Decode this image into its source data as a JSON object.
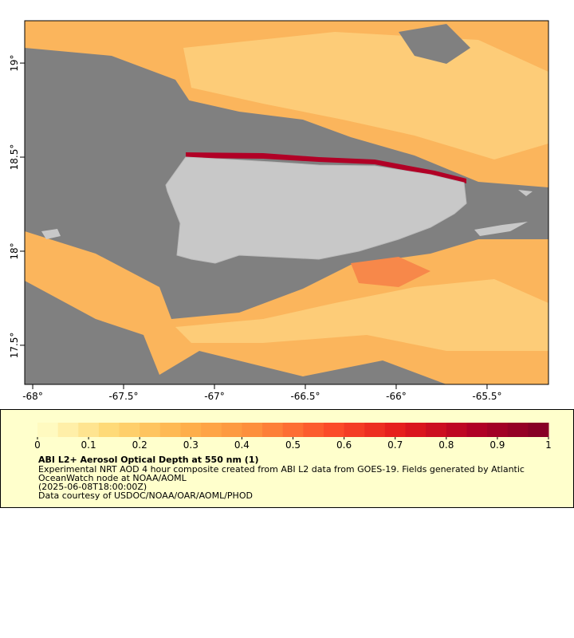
{
  "map": {
    "xlim": [
      -68.044,
      -65.162
    ],
    "ylim": [
      17.292,
      19.225
    ],
    "xticks": [
      {
        "value": -68,
        "label": "-68°"
      },
      {
        "value": -67.5,
        "label": "-67.5°"
      },
      {
        "value": -67,
        "label": "-67°"
      },
      {
        "value": -66.5,
        "label": "-66.5°"
      },
      {
        "value": -66,
        "label": "-66°"
      },
      {
        "value": -65.5,
        "label": "-65.5°"
      }
    ],
    "yticks": [
      {
        "value": 17.5,
        "label": "17.5°"
      },
      {
        "value": 18,
        "label": "18°"
      },
      {
        "value": 18.5,
        "label": "18.5°"
      },
      {
        "value": 19,
        "label": "19°"
      }
    ]
  },
  "colorbar": {
    "lim": [
      0,
      1
    ],
    "ticks": [
      0,
      0.1,
      0.2,
      0.3,
      0.4,
      0.5,
      0.6,
      0.7,
      0.8,
      0.9,
      1
    ],
    "steps": 25,
    "colors": [
      "#ffffcc",
      "#fed976",
      "#feb24c",
      "#fd8d3c",
      "#fc4e2a",
      "#e31a1c",
      "#b10026",
      "#800026"
    ]
  },
  "caption": {
    "title": "ABI L2+ Aerosol Optical Depth at 550 nm (1)",
    "lines": [
      "Experimental NRT AOD 4 hour composite created from ABI L2 data from GOES-19. Fields generated by Atlantic",
      "OceanWatch node at NOAA/AOML",
      "(2025-06-08T18:00:00Z)",
      "Data courtesy of USDOC/NOAA/OAR/AOML/PHOD"
    ]
  }
}
